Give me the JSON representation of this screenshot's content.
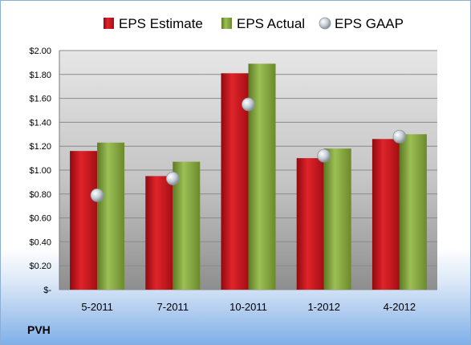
{
  "company": "PVH",
  "chart_data": {
    "type": "bar",
    "categories": [
      "5-2011",
      "7-2011",
      "10-2011",
      "1-2012",
      "4-2012"
    ],
    "series": [
      {
        "name": "EPS Estimate",
        "values": [
          1.16,
          0.95,
          1.81,
          1.1,
          1.26
        ],
        "color": "#c0141a"
      },
      {
        "name": "EPS Actual",
        "values": [
          1.23,
          1.07,
          1.89,
          1.18,
          1.3
        ],
        "color": "#7fa03b"
      },
      {
        "name": "EPS GAAP",
        "type": "scatter",
        "values": [
          0.79,
          0.93,
          1.55,
          1.12,
          1.28
        ],
        "color": "#b8c0c8"
      }
    ],
    "yticks": [
      "$-",
      "$0.20",
      "$0.40",
      "$0.60",
      "$0.80",
      "$1.00",
      "$1.20",
      "$1.40",
      "$1.60",
      "$1.80",
      "$2.00"
    ],
    "ylim": [
      0,
      2.0
    ],
    "grid": true,
    "legend": "top"
  }
}
